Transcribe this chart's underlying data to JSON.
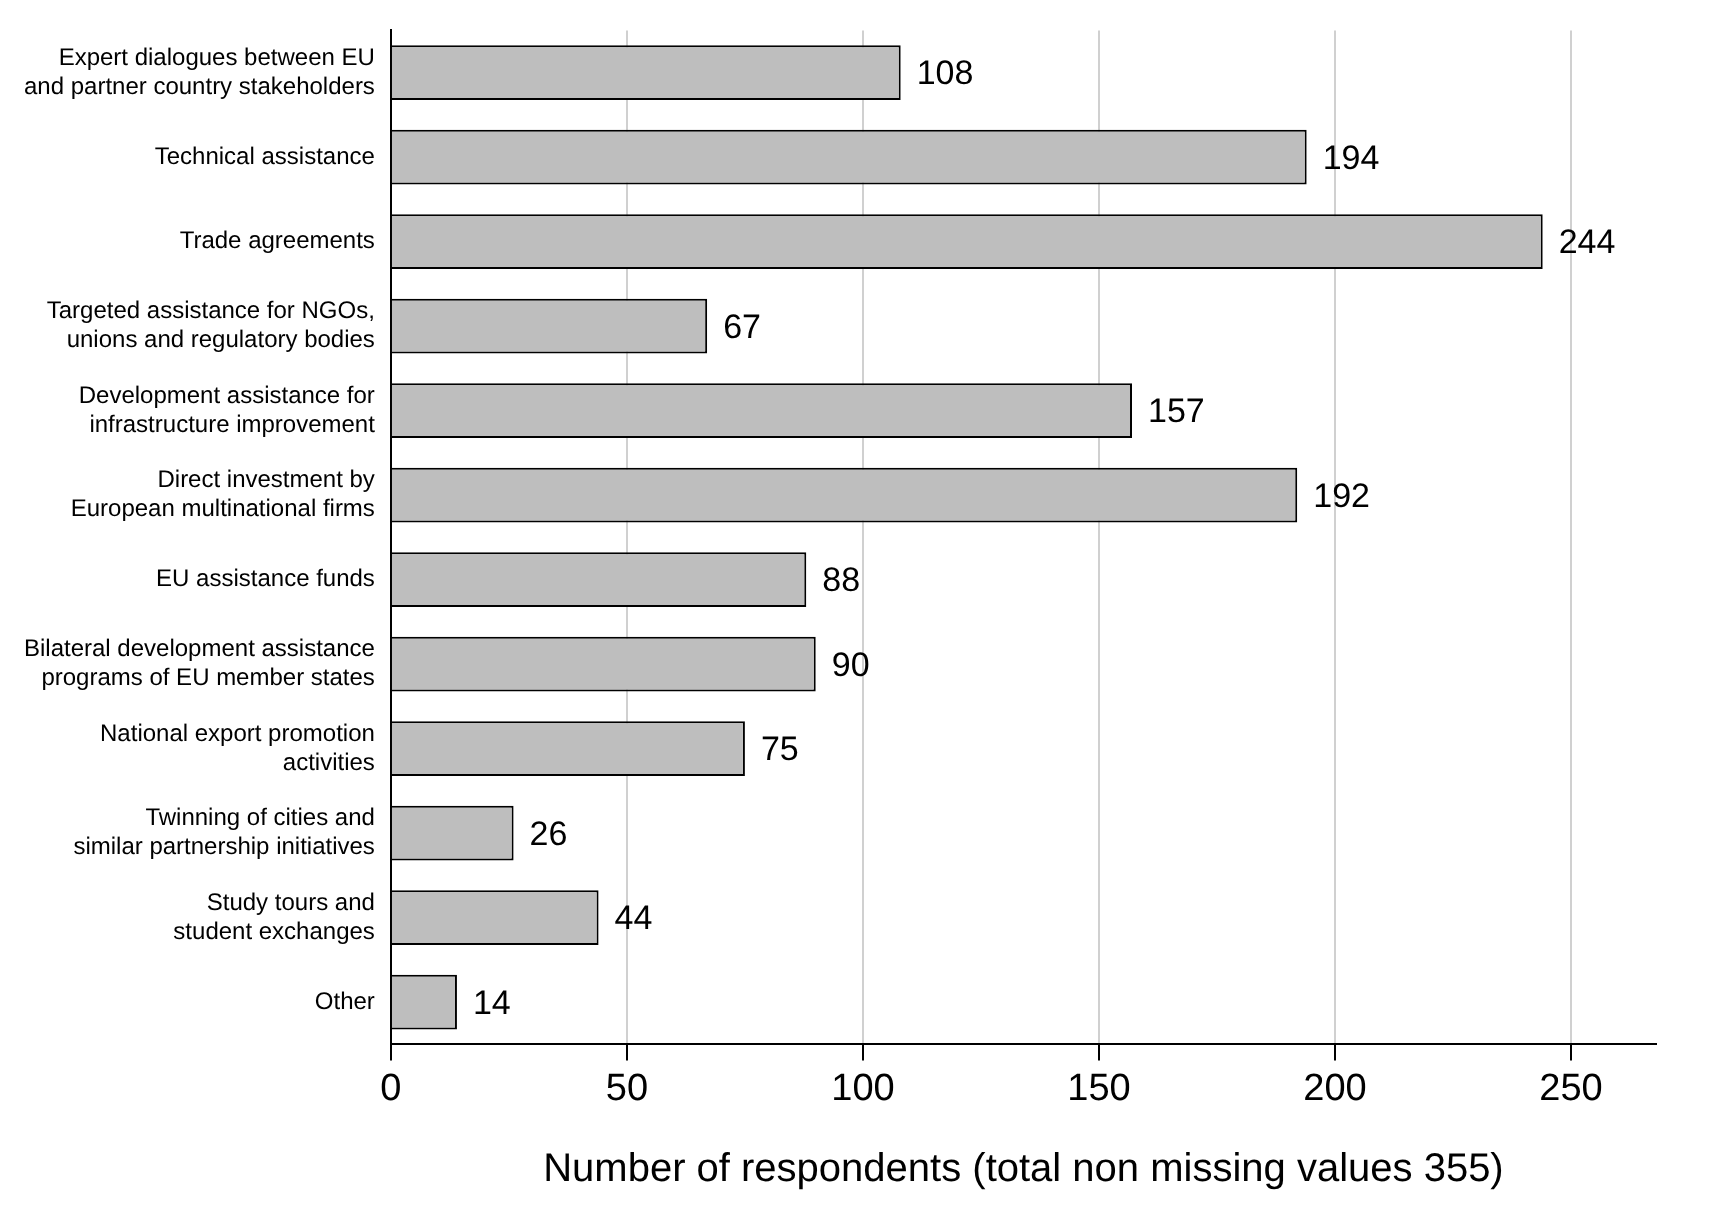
{
  "chart_data": {
    "type": "bar",
    "orientation": "horizontal",
    "xlabel": "Number of respondents (total non missing values 355)",
    "categories": [
      "Expert dialogues between EU\nand partner country stakeholders",
      "Technical assistance",
      "Trade agreements",
      "Targeted assistance for NGOs,\nunions and regulatory bodies",
      "Development assistance for\ninfrastructure improvement",
      "Direct investment by\nEuropean multinational firms",
      "EU assistance funds",
      "Bilateral development assistance\nprograms of EU member states",
      "National export promotion\nactivities",
      "Twinning of cities and\nsimilar partnership initiatives",
      "Study tours and\nstudent exchanges",
      "Other"
    ],
    "values": [
      108,
      194,
      244,
      67,
      157,
      192,
      88,
      90,
      75,
      26,
      44,
      14
    ],
    "color": "#bebebe",
    "xlim": [
      0,
      268
    ],
    "xticks": [
      0,
      50,
      100,
      150,
      200,
      250
    ],
    "grid": "x",
    "data_labels": true,
    "legend": false
  }
}
